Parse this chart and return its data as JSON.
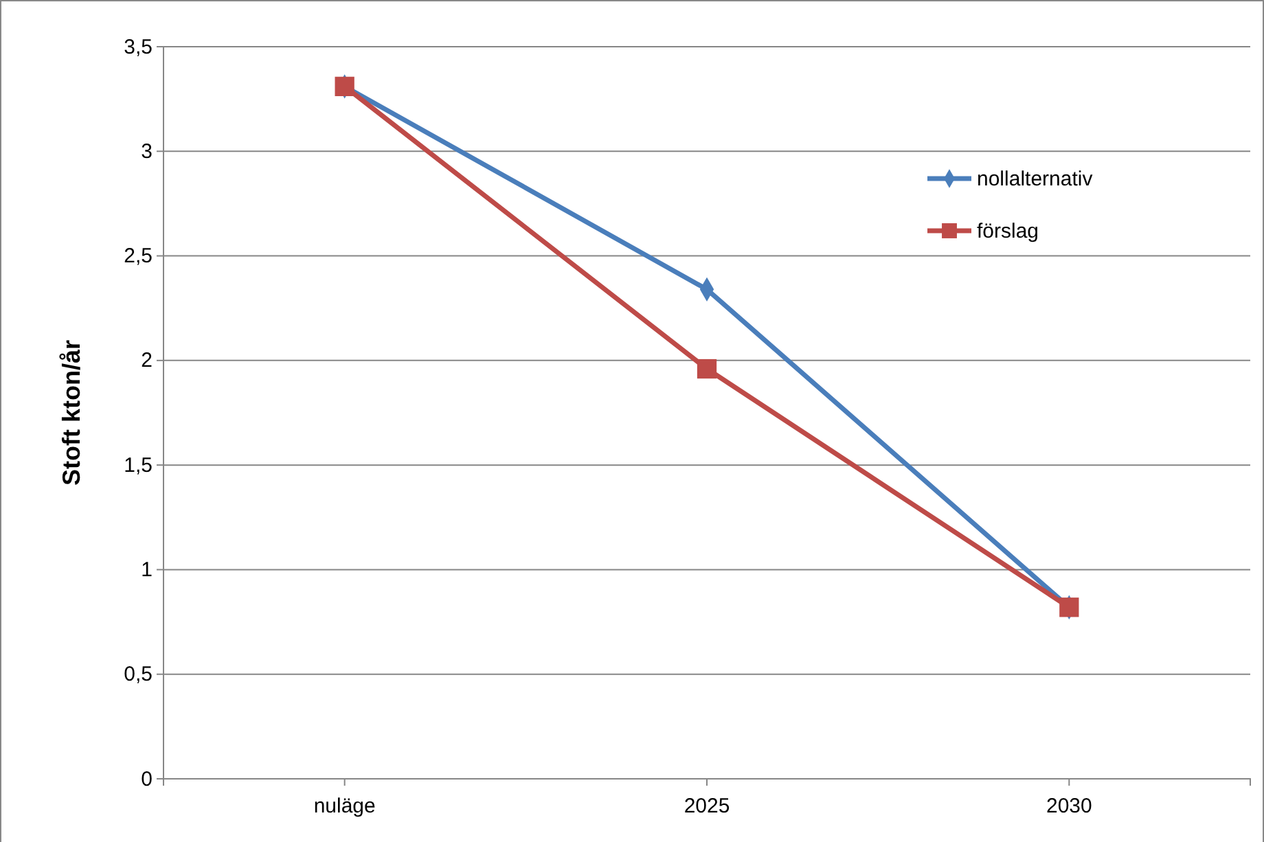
{
  "chart_data": {
    "type": "line",
    "ylabel": "Stoft kton/år",
    "categories": [
      "nuläge",
      "2025",
      "2030"
    ],
    "series": [
      {
        "name": "nollalternativ",
        "color": "#4a7ebb",
        "marker": "diamond",
        "values": [
          3.31,
          2.34,
          0.82
        ]
      },
      {
        "name": "förslag",
        "color": "#be4b48",
        "marker": "square",
        "values": [
          3.31,
          1.96,
          0.82
        ]
      }
    ],
    "ylim": [
      0,
      3.5
    ],
    "yticks": [
      0,
      {
        "value": 0.5,
        "label": "0,5"
      },
      1,
      {
        "value": 1.5,
        "label": "1,5"
      },
      2,
      {
        "value": 2.5,
        "label": "2,5"
      },
      3,
      {
        "value": 3.5,
        "label": "3,5"
      }
    ],
    "grid": "y",
    "legend": "right",
    "line_style": "solid"
  }
}
